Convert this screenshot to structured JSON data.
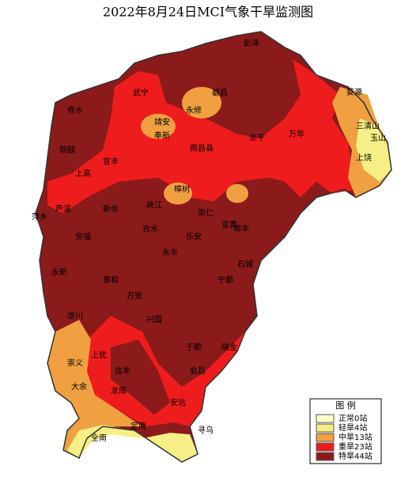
{
  "title": "2022年8月24日MCI气象干旱监测图",
  "legend": {
    "title": "图 例",
    "items": [
      {
        "label": "正常0站",
        "color": "#ffffc8"
      },
      {
        "label": "轻旱4站",
        "color": "#f5ef85"
      },
      {
        "label": "中旱13站",
        "color": "#f0a040"
      },
      {
        "label": "重旱23站",
        "color": "#ee1c1c"
      },
      {
        "label": "特旱44站",
        "color": "#8b1a1a"
      }
    ]
  },
  "places": [
    "彭泽",
    "武宁",
    "修水",
    "都昌",
    "永修",
    "靖安",
    "奉新",
    "南昌县",
    "铜鼓",
    "宜丰",
    "上高",
    "樟树",
    "崇仁",
    "宜黄",
    "余干",
    "万年",
    "婺源",
    "三清山",
    "玉山",
    "上饶",
    "萍乡",
    "芦溪",
    "新余",
    "吉水",
    "永丰",
    "乐安",
    "南丰",
    "宁都",
    "石城",
    "兴国",
    "于都",
    "瑞金",
    "会昌",
    "安远",
    "寻乌",
    "定南",
    "龙南",
    "全南",
    "信丰",
    "大余",
    "崇义",
    "上犹",
    "遂川",
    "万安",
    "泰和",
    "永新",
    "安福",
    "峡江"
  ]
}
